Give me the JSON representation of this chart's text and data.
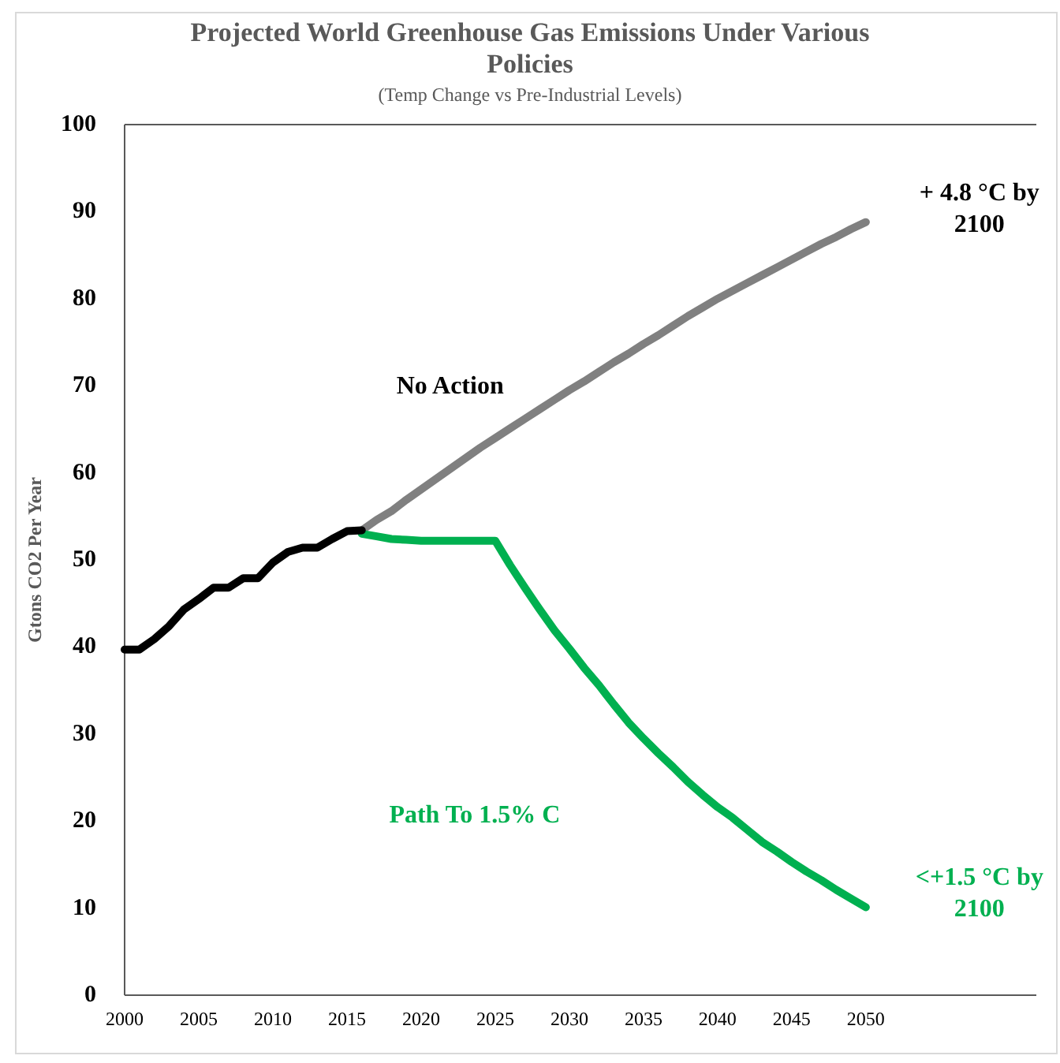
{
  "chart_data": {
    "type": "line",
    "title": "Projected World Greenhouse Gas Emissions Under Various Policies",
    "subtitle": "(Temp Change vs Pre-Industrial Levels)",
    "ylabel": "Gtons CO2 Per Year",
    "xlim": [
      2000,
      2061.5
    ],
    "xticks": [
      2000,
      2005,
      2010,
      2015,
      2020,
      2025,
      2030,
      2035,
      2040,
      2045,
      2050
    ],
    "ylim": [
      0,
      100
    ],
    "yticks": [
      0,
      10,
      20,
      30,
      40,
      50,
      60,
      70,
      80,
      90,
      100
    ],
    "grid": false,
    "marker": "none",
    "line_style": "solid",
    "series": [
      {
        "name": "No Action",
        "color": "#808080",
        "x": [
          2016,
          2017,
          2018,
          2019,
          2020,
          2021,
          2022,
          2023,
          2024,
          2025,
          2026,
          2027,
          2028,
          2029,
          2030,
          2031,
          2032,
          2033,
          2034,
          2035,
          2036,
          2037,
          2038,
          2039,
          2040,
          2041,
          2042,
          2043,
          2044,
          2045,
          2046,
          2047,
          2048,
          2049,
          2050
        ],
        "values": [
          53.4,
          54.6,
          55.6,
          56.9,
          58.1,
          59.3,
          60.5,
          61.7,
          62.9,
          64.0,
          65.1,
          66.2,
          67.3,
          68.4,
          69.5,
          70.5,
          71.6,
          72.7,
          73.7,
          74.8,
          75.8,
          76.9,
          78.0,
          79.0,
          80.0,
          80.9,
          81.8,
          82.7,
          83.6,
          84.5,
          85.4,
          86.3,
          87.1,
          88.0,
          88.8
        ]
      },
      {
        "name": "Path To 1.5% C",
        "color": "#00b050",
        "x": [
          2016,
          2017,
          2018,
          2019,
          2020,
          2021,
          2022,
          2023,
          2024,
          2025,
          2026,
          2027,
          2028,
          2029,
          2030,
          2031,
          2032,
          2033,
          2034,
          2035,
          2036,
          2037,
          2038,
          2039,
          2040,
          2041,
          2042,
          2043,
          2044,
          2045,
          2046,
          2047,
          2048,
          2049,
          2050
        ],
        "values": [
          53.0,
          52.7,
          52.4,
          52.3,
          52.2,
          52.2,
          52.2,
          52.2,
          52.2,
          52.2,
          49.4,
          46.8,
          44.3,
          41.9,
          39.8,
          37.6,
          35.6,
          33.4,
          31.3,
          29.5,
          27.8,
          26.2,
          24.5,
          23.0,
          21.6,
          20.4,
          19.0,
          17.6,
          16.5,
          15.3,
          14.2,
          13.2,
          12.1,
          11.1,
          10.1
        ]
      },
      {
        "color": "#000000",
        "x": [
          2000,
          2001,
          2002,
          2003,
          2004,
          2005,
          2006,
          2007,
          2008,
          2009,
          2010,
          2011,
          2012,
          2013,
          2014,
          2015,
          2016
        ],
        "values": [
          39.7,
          39.7,
          40.9,
          42.4,
          44.3,
          45.5,
          46.8,
          46.8,
          47.9,
          47.9,
          49.7,
          50.9,
          51.4,
          51.4,
          52.4,
          53.3,
          53.4
        ]
      }
    ],
    "annotations": [
      {
        "text": "+ 4.8 °C by 2100",
        "x": 2050,
        "y": 88.8
      },
      {
        "text": "<+1.5 °C by 2100",
        "x": 2050,
        "y": 10.1
      }
    ]
  }
}
